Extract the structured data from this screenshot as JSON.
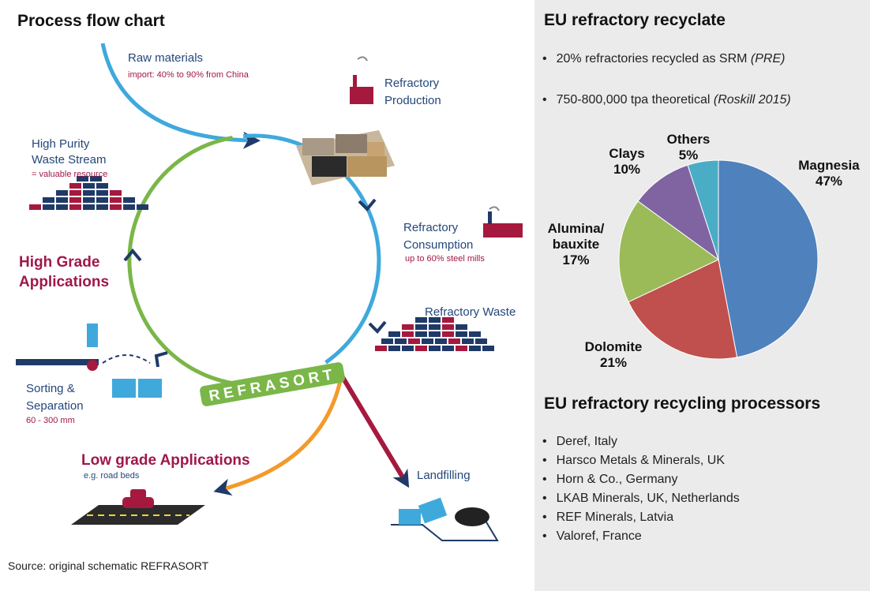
{
  "flow": {
    "title": "Process flow chart",
    "raw_materials": {
      "label": "Raw materials",
      "note": "import: 40% to 90% from China"
    },
    "production": {
      "lines": [
        "Refractory",
        "Production"
      ]
    },
    "high_purity": {
      "lines": [
        "High Purity",
        "Waste Stream"
      ],
      "note": "= valuable resource"
    },
    "consumption": {
      "lines": [
        "Refractory",
        "Consumption"
      ],
      "note": "up to 60% steel mills"
    },
    "high_grade": {
      "lines": [
        "High Grade",
        "Applications"
      ]
    },
    "waste": {
      "label": "Refractory Waste"
    },
    "refrasort": "REFRASORT",
    "sorting": {
      "lines": [
        "Sorting &",
        "Separation"
      ],
      "note": "60 - 300 mm"
    },
    "low_grade": {
      "label": "Low grade Applications",
      "note": "e.g. road beds"
    },
    "landfilling": {
      "label": "Landfilling"
    },
    "source": "Source: original  schematic REFRASORT"
  },
  "recyclate": {
    "title": "EU refractory recyclate",
    "bullets": [
      {
        "text": "20% refractories recycled as SRM",
        "source": "(PRE)"
      },
      {
        "text": "750-800,000 tpa theoretical",
        "source": "(Roskill 2015)"
      }
    ]
  },
  "chart_data": {
    "type": "pie",
    "categories": [
      "Magnesia",
      "Dolomite",
      "Alumina/ bauxite",
      "Clays",
      "Others"
    ],
    "values": [
      47,
      21,
      17,
      10,
      5
    ],
    "value_labels": [
      "47%",
      "21%",
      "17%",
      "10%",
      "5%"
    ],
    "colors": [
      "#4f81bd",
      "#c0504d",
      "#9bbb59",
      "#8064a2",
      "#4bacc6"
    ]
  },
  "processors": {
    "title": "EU refractory recycling processors",
    "items": [
      "Deref, Italy",
      "Harsco Metals & Minerals, UK",
      "Horn & Co., Germany",
      "LKAB Minerals, UK, Netherlands",
      "REF Minerals,  Latvia",
      "Valoref, France"
    ]
  }
}
